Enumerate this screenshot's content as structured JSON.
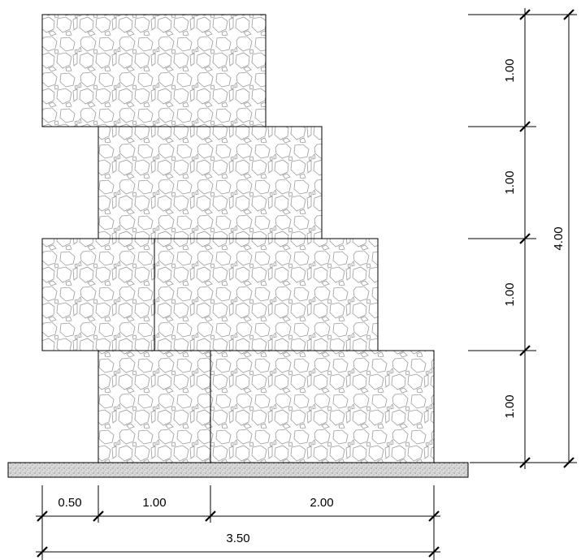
{
  "vertical_dims": {
    "row1": "1.00",
    "row2": "1.00",
    "row3": "1.00",
    "row4": "1.00",
    "total": "4.00"
  },
  "horizontal_dims": {
    "seg1": "0.50",
    "seg2": "1.00",
    "seg3": "2.00",
    "total": "3.50"
  }
}
